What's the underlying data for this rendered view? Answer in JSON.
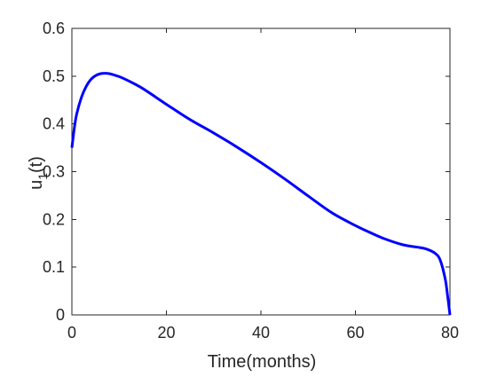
{
  "chart_data": {
    "type": "line",
    "title": "",
    "xlabel": "Time(months)",
    "ylabel_main": "u",
    "ylabel_sub": "1",
    "ylabel_suffix": "(t)",
    "xlim": [
      0,
      80
    ],
    "ylim": [
      0,
      0.6
    ],
    "xticks": [
      0,
      20,
      40,
      60,
      80
    ],
    "xtick_labels": [
      "0",
      "20",
      "40",
      "60",
      "80"
    ],
    "yticks": [
      0,
      0.1,
      0.2,
      0.3,
      0.4,
      0.5,
      0.6
    ],
    "ytick_labels": [
      "0",
      "0.1",
      "0.2",
      "0.3",
      "0.4",
      "0.5",
      "0.6"
    ],
    "grid": false,
    "legend": "none",
    "series": [
      {
        "color": "#0000ff",
        "x": [
          0,
          0.5,
          1,
          2,
          3,
          4,
          5,
          6,
          7,
          8,
          10,
          12,
          15,
          20,
          25,
          30,
          35,
          40,
          45,
          50,
          55,
          60,
          63,
          66,
          70,
          73,
          75,
          77,
          78,
          79,
          79.5,
          80
        ],
        "y": [
          0.35,
          0.39,
          0.42,
          0.455,
          0.478,
          0.493,
          0.501,
          0.505,
          0.506,
          0.505,
          0.499,
          0.49,
          0.474,
          0.441,
          0.409,
          0.381,
          0.351,
          0.319,
          0.285,
          0.249,
          0.214,
          0.187,
          0.173,
          0.16,
          0.147,
          0.142,
          0.138,
          0.128,
          0.113,
          0.075,
          0.04,
          0.0
        ]
      }
    ]
  }
}
